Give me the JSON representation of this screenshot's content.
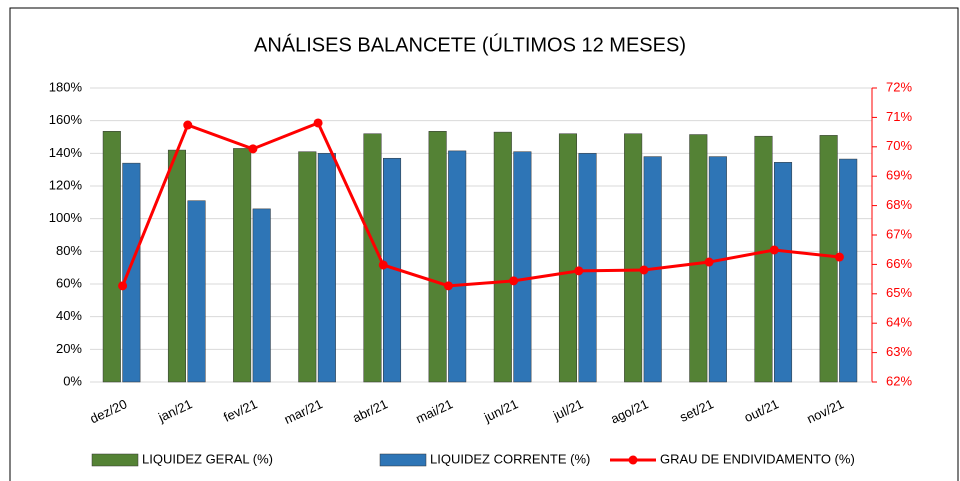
{
  "chart_data": {
    "type": "bar",
    "title": "ANÁLISES BALANCETE  (ÚLTIMOS 12 MESES)",
    "categories": [
      "dez/20",
      "jan/21",
      "fev/21",
      "mar/21",
      "abr/21",
      "mai/21",
      "jun/21",
      "jul/21",
      "ago/21",
      "set/21",
      "out/21",
      "nov/21"
    ],
    "series": [
      {
        "name": "LIQUIDEZ GERAL  (%)",
        "color": "#548235",
        "type": "bar",
        "values": [
          153.5,
          142,
          143,
          141,
          152,
          153.5,
          153,
          152,
          152,
          151.5,
          150.5,
          151
        ]
      },
      {
        "name": "LIQUIDEZ CORRENTE  (%)",
        "color": "#2e75b6",
        "type": "bar",
        "values": [
          134,
          111,
          106,
          140,
          137,
          141.5,
          141,
          140,
          138,
          138,
          134.5,
          136.5
        ]
      },
      {
        "name": "GRAU DE ENDIVIDAMENTO  (%)",
        "color": "#ff0000",
        "type": "line",
        "axis": "y2",
        "values": [
          65.27,
          70.74,
          69.93,
          70.81,
          65.98,
          65.27,
          65.44,
          65.78,
          65.81,
          66.08,
          66.49,
          66.25
        ]
      }
    ],
    "ylim": [
      0,
      180
    ],
    "yticks": [
      {
        "value": 0,
        "label": "0%"
      },
      {
        "value": 20,
        "label": "20%"
      },
      {
        "value": 40,
        "label": "40%"
      },
      {
        "value": 60,
        "label": "60%"
      },
      {
        "value": 80,
        "label": "80%"
      },
      {
        "value": 100,
        "label": "100%"
      },
      {
        "value": 120,
        "label": "120%"
      },
      {
        "value": 140,
        "label": "140%"
      },
      {
        "value": 160,
        "label": "160%"
      },
      {
        "value": 180,
        "label": "180%"
      }
    ],
    "y2lim": [
      62,
      72
    ],
    "y2ticks": [
      {
        "value": 62,
        "label": "62%"
      },
      {
        "value": 63,
        "label": "63%"
      },
      {
        "value": 64,
        "label": "64%"
      },
      {
        "value": 65,
        "label": "65%"
      },
      {
        "value": 66,
        "label": "66%"
      },
      {
        "value": 67,
        "label": "67%"
      },
      {
        "value": 68,
        "label": "68%"
      },
      {
        "value": 69,
        "label": "69%"
      },
      {
        "value": 70,
        "label": "70%"
      },
      {
        "value": 71,
        "label": "71%"
      },
      {
        "value": 72,
        "label": "72%"
      }
    ],
    "grid": true,
    "legend": "bottom"
  }
}
